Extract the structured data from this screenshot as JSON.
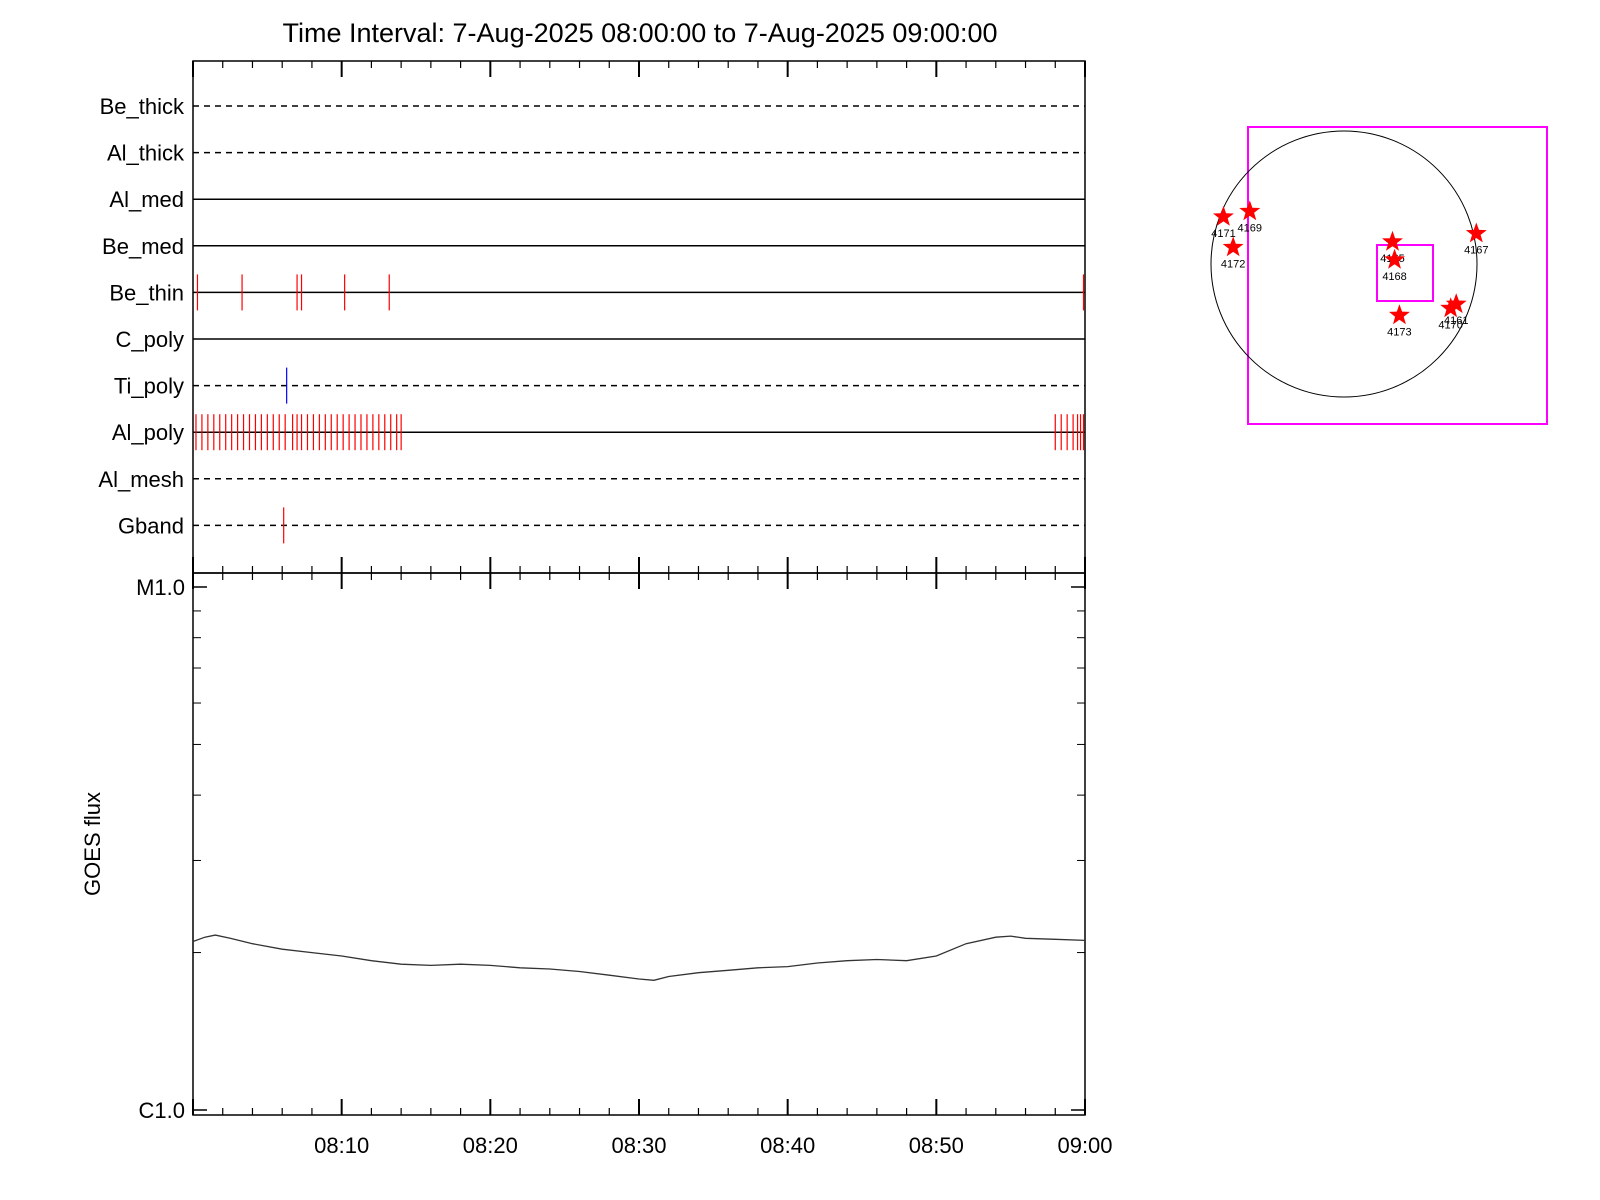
{
  "title": "Time Interval:  7-Aug-2025 08:00:00 to  7-Aug-2025 09:00:00",
  "colors": {
    "axis": "#000000",
    "event_red": "#ff0000",
    "event_blue": "#0000ff",
    "fov": "#ff00ff",
    "sun_limb": "#000000",
    "star": "#ff0000"
  },
  "chart_data": [
    {
      "type": "line",
      "subtype": "filter-timeline",
      "time_range": [
        "08:00",
        "09:00"
      ],
      "x_unit": "minutes after 08:00",
      "tracks": [
        {
          "name": "Be_thick",
          "style": "dashed",
          "events_red": [],
          "events_blue": []
        },
        {
          "name": "Al_thick",
          "style": "dashed",
          "events_red": [],
          "events_blue": []
        },
        {
          "name": "Al_med",
          "style": "solid",
          "events_red": [],
          "events_blue": []
        },
        {
          "name": "Be_med",
          "style": "solid",
          "events_red": [],
          "events_blue": []
        },
        {
          "name": "Be_thin",
          "style": "solid",
          "events_red": [
            0.3,
            3.3,
            7.0,
            7.3,
            10.2,
            13.2,
            59.9
          ],
          "events_blue": []
        },
        {
          "name": "C_poly",
          "style": "solid",
          "events_red": [],
          "events_blue": []
        },
        {
          "name": "Ti_poly",
          "style": "dashed",
          "events_red": [],
          "events_blue": [
            6.3
          ]
        },
        {
          "name": "Al_poly",
          "style": "solid",
          "events_red": [
            0.2,
            0.6,
            1.0,
            1.4,
            1.8,
            2.2,
            2.6,
            3.0,
            3.4,
            3.8,
            4.2,
            4.6,
            5.0,
            5.4,
            5.8,
            6.2,
            6.7,
            7.0,
            7.3,
            7.7,
            8.1,
            8.5,
            8.9,
            9.3,
            9.7,
            10.1,
            10.5,
            10.9,
            11.3,
            11.7,
            12.1,
            12.5,
            12.9,
            13.3,
            13.7,
            14.0,
            58.0,
            58.4,
            58.8,
            59.2,
            59.5,
            59.7,
            59.9
          ],
          "events_blue": []
        },
        {
          "name": "Al_mesh",
          "style": "dashed",
          "events_red": [],
          "events_blue": []
        },
        {
          "name": "Gband",
          "style": "dashed",
          "events_red": [
            6.1
          ],
          "events_blue": []
        }
      ]
    },
    {
      "type": "line",
      "subtype": "goes-flux",
      "ylabel": "GOES flux",
      "ylog": true,
      "ylim": [
        1e-06,
        1e-05
      ],
      "ytick_labels": [
        "M1.0",
        "C1.0"
      ],
      "xlim": [
        0,
        60
      ],
      "x_unit": "minutes after 08:00",
      "xtick_labels": [
        "08:10",
        "08:20",
        "08:30",
        "08:40",
        "08:50",
        "09:00"
      ],
      "xtick_values": [
        10,
        20,
        30,
        40,
        50,
        60
      ],
      "series": [
        {
          "x": [
            0,
            0.8,
            1.5,
            2.5,
            4,
            6,
            8,
            10,
            12,
            14,
            16,
            18,
            20,
            22,
            24,
            26,
            28,
            30,
            31,
            32,
            34,
            36,
            38,
            40,
            42,
            44,
            46,
            48,
            50,
            52,
            54,
            55,
            56,
            58,
            60
          ],
          "y": [
            2.1e-06,
            2.14e-06,
            2.16e-06,
            2.13e-06,
            2.08e-06,
            2.03e-06,
            2e-06,
            1.97e-06,
            1.93e-06,
            1.9e-06,
            1.89e-06,
            1.9e-06,
            1.89e-06,
            1.87e-06,
            1.86e-06,
            1.84e-06,
            1.81e-06,
            1.78e-06,
            1.77e-06,
            1.8e-06,
            1.83e-06,
            1.85e-06,
            1.87e-06,
            1.88e-06,
            1.91e-06,
            1.93e-06,
            1.94e-06,
            1.93e-06,
            1.97e-06,
            2.08e-06,
            2.14e-06,
            2.15e-06,
            2.13e-06,
            2.12e-06,
            2.11e-06
          ]
        }
      ]
    }
  ],
  "sun_map": {
    "regions": [
      {
        "label": "4171",
        "x": -870,
        "y": 340
      },
      {
        "label": "4169",
        "x": -680,
        "y": 380
      },
      {
        "label": "4172",
        "x": -800,
        "y": 120
      },
      {
        "label": "4165",
        "x": 350,
        "y": 160
      },
      {
        "label": "4168",
        "x": 365,
        "y": 30
      },
      {
        "label": "4167",
        "x": 955,
        "y": 220
      },
      {
        "label": "4173",
        "x": 400,
        "y": -370
      },
      {
        "label": "4170",
        "x": 770,
        "y": -320
      },
      {
        "label": "4161",
        "x": 810,
        "y": -290
      }
    ]
  }
}
